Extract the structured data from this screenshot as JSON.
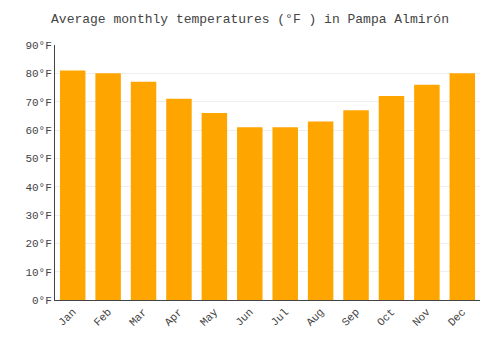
{
  "chart_data": {
    "type": "bar",
    "title": "Average monthly temperatures (°F ) in Pampa Almirón",
    "categories": [
      "Jan",
      "Feb",
      "Mar",
      "Apr",
      "May",
      "Jun",
      "Jul",
      "Aug",
      "Sep",
      "Oct",
      "Nov",
      "Dec"
    ],
    "values": [
      81,
      80,
      77,
      71,
      66,
      61,
      61,
      63,
      67,
      72,
      76,
      80
    ],
    "color": "#FFA500",
    "ylim": [
      0,
      90
    ],
    "yticks": [
      {
        "value": 0,
        "label": "0°F"
      },
      {
        "value": 10,
        "label": "10°F"
      },
      {
        "value": 20,
        "label": "20°F"
      },
      {
        "value": 30,
        "label": "30°F"
      },
      {
        "value": 40,
        "label": "40°F"
      },
      {
        "value": 50,
        "label": "50°F"
      },
      {
        "value": 60,
        "label": "60°F"
      },
      {
        "value": 70,
        "label": "70°F"
      },
      {
        "value": 80,
        "label": "80°F"
      },
      {
        "value": 90,
        "label": "90°F"
      }
    ],
    "grid": true
  }
}
